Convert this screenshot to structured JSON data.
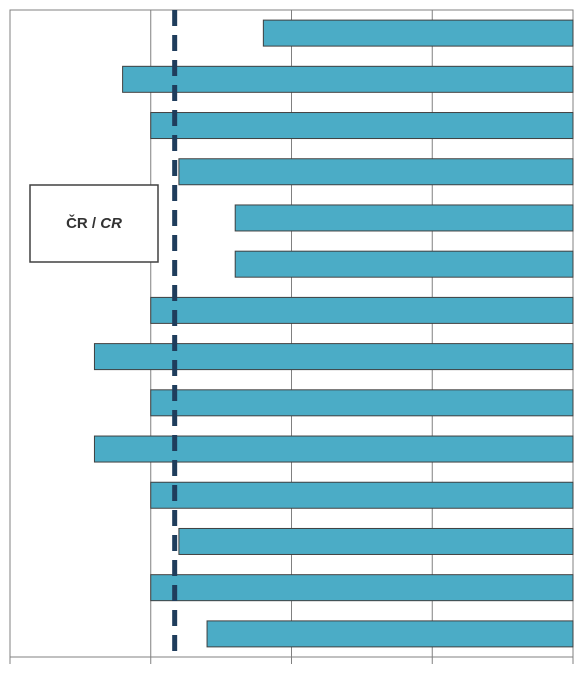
{
  "chart_data": {
    "type": "bar",
    "orientation": "horizontal",
    "categories": [
      null,
      null,
      null,
      null,
      null,
      null,
      null,
      null,
      null,
      null,
      null,
      null,
      null,
      null
    ],
    "values": [
      2.2,
      3.2,
      3.0,
      2.8,
      2.4,
      2.4,
      3.0,
      3.4,
      3.0,
      3.4,
      3.0,
      2.8,
      3.0,
      2.6
    ],
    "color": "#4bacc6",
    "xlim": [
      4,
      0
    ],
    "xticks": [
      0,
      1,
      2,
      3,
      4
    ],
    "grid": true,
    "reference_line": 2.83,
    "reference_color": "#1f3d5c",
    "annotation": [
      "ČR / ",
      "CR"
    ]
  }
}
